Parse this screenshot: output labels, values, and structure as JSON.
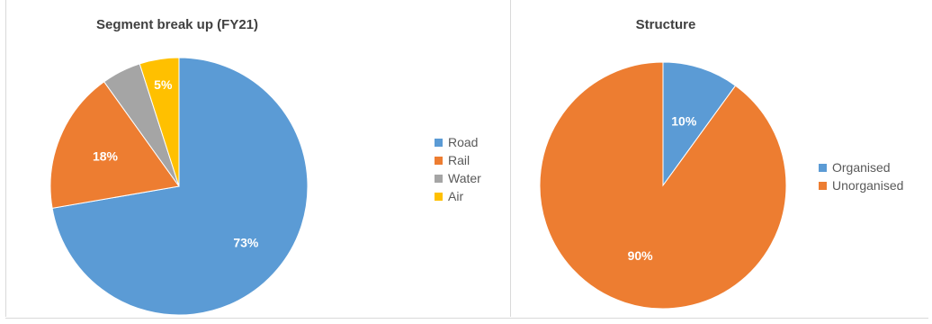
{
  "chart_data": [
    {
      "type": "pie",
      "title": "Segment break up (FY21)",
      "categories": [
        "Road",
        "Rail",
        "Water",
        "Air"
      ],
      "values": [
        73,
        18,
        5,
        5
      ],
      "data_labels": [
        "73%",
        "18%",
        "",
        "5%"
      ],
      "colors": [
        "#5b9bd5",
        "#ed7d31",
        "#a5a5a5",
        "#ffc000"
      ],
      "legend_position": "right"
    },
    {
      "type": "pie",
      "title": "Structure",
      "categories": [
        "Organised",
        "Unorganised"
      ],
      "values": [
        10,
        90
      ],
      "data_labels": [
        "10%",
        "90%"
      ],
      "colors": [
        "#5b9bd5",
        "#ed7d31"
      ],
      "legend_position": "right"
    }
  ]
}
